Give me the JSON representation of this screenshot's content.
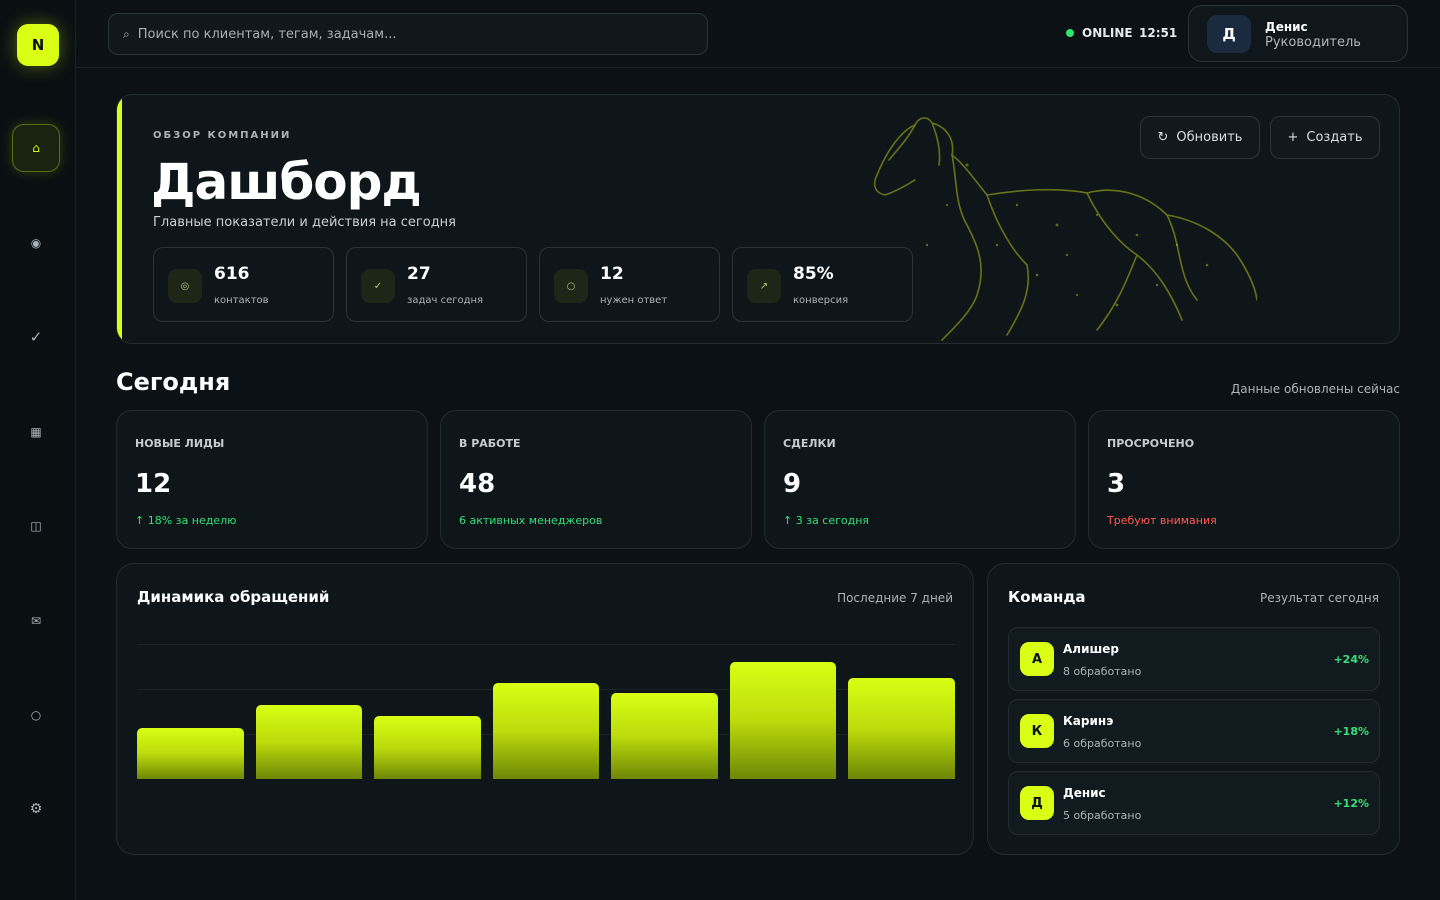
{
  "app": {
    "logo": "N"
  },
  "sidebar": {
    "items": [
      {
        "icon": "home-icon",
        "glyph": "⌂",
        "active": true
      },
      {
        "icon": "contacts-icon",
        "glyph": "◉",
        "active": false
      },
      {
        "icon": "tasks-icon",
        "glyph": "✓",
        "active": false
      },
      {
        "icon": "calendar-icon",
        "glyph": "▦",
        "active": false
      },
      {
        "icon": "board-icon",
        "glyph": "◫",
        "active": false
      },
      {
        "icon": "mail-icon",
        "glyph": "✉",
        "active": false
      },
      {
        "icon": "circle-icon",
        "glyph": "○",
        "active": false
      },
      {
        "icon": "settings-icon",
        "glyph": "⚙",
        "active": false
      }
    ]
  },
  "topbar": {
    "search_icon": "⌕",
    "search_placeholder": "Поиск по клиентам, тегам, задачам...",
    "status": "ONLINE",
    "time": "12:51",
    "user": {
      "avatar": "Д",
      "name": "Денис",
      "role": "Руководитель"
    }
  },
  "hero": {
    "eyebrow": "ОБЗОР КОМПАНИИ",
    "title": "Дашборд",
    "subtitle": "Главные показатели и действия на сегодня",
    "refresh_icon": "↻",
    "refresh_label": "Обновить",
    "create_icon": "+",
    "create_label": "Создать",
    "kpis": [
      {
        "icon": "target-icon",
        "glyph": "◎",
        "value": "616",
        "label": "контактов"
      },
      {
        "icon": "check-icon",
        "glyph": "✓",
        "value": "27",
        "label": "задач сегодня"
      },
      {
        "icon": "circle-icon",
        "glyph": "○",
        "value": "12",
        "label": "нужен ответ"
      },
      {
        "icon": "trend-icon",
        "glyph": "↗",
        "value": "85%",
        "label": "конверсия"
      }
    ]
  },
  "today": {
    "title": "Сегодня",
    "note": "Данные обновлены сейчас",
    "stats": [
      {
        "label": "НОВЫЕ ЛИДЫ",
        "value": "12",
        "note": "↑ 18% за неделю",
        "tone": "green"
      },
      {
        "label": "В РАБОТЕ",
        "value": "48",
        "note": "6 активных менеджеров",
        "tone": "green"
      },
      {
        "label": "СДЕЛКИ",
        "value": "9",
        "note": "↑ 3 за сегодня",
        "tone": "green"
      },
      {
        "label": "ПРОСРОЧЕНО",
        "value": "3",
        "note": "Требуют внимания",
        "tone": "red"
      }
    ]
  },
  "chart_panel": {
    "title": "Динамика обращений",
    "note": "Последние 7 дней"
  },
  "chart_data": {
    "type": "bar",
    "categories": [
      "",
      "",
      "",
      "",
      "",
      "",
      ""
    ],
    "values": [
      38,
      55,
      47,
      71,
      64,
      87,
      75
    ],
    "ylim": [
      0,
      100
    ],
    "grid": true,
    "color": "#d8ff14"
  },
  "team": {
    "title": "Команда",
    "note": "Результат сегодня",
    "members": [
      {
        "avatar": "А",
        "name": "Алишер",
        "count": "8 обработано",
        "delta": "+24%"
      },
      {
        "avatar": "К",
        "name": "Каринэ",
        "count": "6 обработано",
        "delta": "+18%"
      },
      {
        "avatar": "Д",
        "name": "Денис",
        "count": "5 обработано",
        "delta": "+12%"
      }
    ]
  },
  "colors": {
    "accent": "#d8ff14",
    "positive": "#35e07a",
    "negative": "#ff5a52",
    "background": "#0b1114"
  }
}
